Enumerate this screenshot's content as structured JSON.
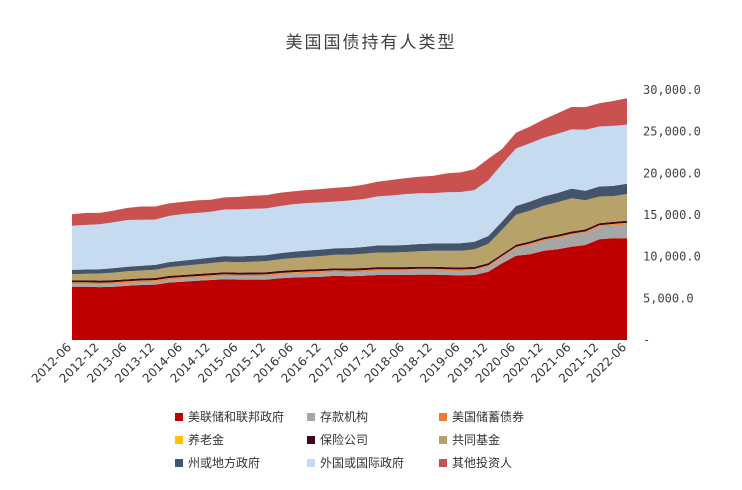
{
  "chart_data": {
    "type": "area",
    "stacked": true,
    "title": "美国国债持有人类型",
    "xlabel": "",
    "ylabel": "",
    "ylim": [
      0,
      30000
    ],
    "yticks": [
      "-",
      "5,000.0",
      "10,000.0",
      "15,000.0",
      "20,000.0",
      "25,000.0",
      "30,000.0"
    ],
    "x": [
      "2012-06",
      "2012-09",
      "2012-12",
      "2013-03",
      "2013-06",
      "2013-09",
      "2013-12",
      "2014-03",
      "2014-06",
      "2014-09",
      "2014-12",
      "2015-03",
      "2015-06",
      "2015-09",
      "2015-12",
      "2016-03",
      "2016-06",
      "2016-09",
      "2016-12",
      "2017-03",
      "2017-06",
      "2017-09",
      "2017-12",
      "2018-03",
      "2018-06",
      "2018-09",
      "2018-12",
      "2019-03",
      "2019-06",
      "2019-09",
      "2019-12",
      "2020-03",
      "2020-06",
      "2020-09",
      "2020-12",
      "2021-03",
      "2021-06",
      "2021-09",
      "2021-12",
      "2022-03",
      "2022-06"
    ],
    "xtick_labels": [
      "2012-06",
      "2012-12",
      "2013-06",
      "2013-12",
      "2014-06",
      "2014-12",
      "2015-06",
      "2015-12",
      "2016-06",
      "2016-12",
      "2017-06",
      "2017-12",
      "2018-06",
      "2018-12",
      "2019-06",
      "2019-12",
      "2020-06",
      "2020-12",
      "2021-06",
      "2021-12",
      "2022-06"
    ],
    "legend_position": "bottom",
    "grid": false,
    "series": [
      {
        "name": "美联储和联邦政府",
        "color": "#c00000",
        "values": [
          6400,
          6400,
          6350,
          6400,
          6500,
          6600,
          6650,
          6900,
          7000,
          7100,
          7200,
          7300,
          7250,
          7250,
          7250,
          7400,
          7500,
          7550,
          7600,
          7700,
          7650,
          7700,
          7800,
          7800,
          7800,
          7850,
          7850,
          7800,
          7750,
          7800,
          8200,
          9200,
          10100,
          10300,
          10700,
          10900,
          11200,
          11400,
          12100,
          12200,
          12200
        ]
      },
      {
        "name": "存款机构",
        "color": "#a6a6a6",
        "values": [
          300,
          300,
          320,
          330,
          330,
          330,
          330,
          340,
          350,
          360,
          370,
          380,
          390,
          400,
          420,
          440,
          450,
          470,
          480,
          480,
          490,
          500,
          510,
          510,
          510,
          510,
          520,
          520,
          530,
          540,
          600,
          700,
          900,
          1100,
          1200,
          1300,
          1400,
          1450,
          1500,
          1550,
          1700
        ]
      },
      {
        "name": "美国储蓄债券",
        "color": "#ed7d31",
        "values": [
          180,
          180,
          180,
          180,
          180,
          180,
          175,
          175,
          175,
          175,
          175,
          175,
          170,
          170,
          170,
          170,
          165,
          165,
          165,
          160,
          160,
          160,
          155,
          155,
          155,
          155,
          150,
          150,
          150,
          150,
          150,
          145,
          145,
          145,
          145,
          140,
          140,
          140,
          140,
          140,
          140
        ]
      },
      {
        "name": "养老金",
        "color": "#ffc000",
        "values": [
          30,
          30,
          30,
          30,
          30,
          30,
          30,
          30,
          30,
          30,
          30,
          30,
          30,
          30,
          30,
          30,
          30,
          30,
          30,
          30,
          30,
          30,
          30,
          30,
          30,
          30,
          30,
          30,
          30,
          30,
          30,
          30,
          30,
          30,
          30,
          30,
          30,
          30,
          30,
          30,
          30
        ]
      },
      {
        "name": "保险公司",
        "color": "#3d0a1a",
        "values": [
          250,
          250,
          250,
          250,
          250,
          250,
          250,
          250,
          250,
          250,
          250,
          250,
          250,
          250,
          250,
          250,
          250,
          250,
          250,
          250,
          250,
          250,
          250,
          250,
          250,
          250,
          250,
          250,
          250,
          250,
          250,
          250,
          250,
          250,
          250,
          250,
          250,
          250,
          250,
          250,
          250
        ]
      },
      {
        "name": "共同基金",
        "color": "#b7a36a",
        "values": [
          750,
          800,
          850,
          900,
          950,
          950,
          1000,
          1050,
          1100,
          1150,
          1200,
          1250,
          1250,
          1300,
          1350,
          1400,
          1450,
          1500,
          1550,
          1600,
          1650,
          1700,
          1750,
          1750,
          1800,
          1850,
          1900,
          1950,
          2000,
          2100,
          2300,
          2900,
          3600,
          3700,
          3800,
          3900,
          4000,
          3500,
          3200,
          3100,
          3200
        ]
      },
      {
        "name": "州或地方政府",
        "color": "#44546a",
        "values": [
          500,
          500,
          520,
          540,
          560,
          580,
          580,
          600,
          620,
          640,
          660,
          680,
          680,
          700,
          720,
          740,
          760,
          780,
          790,
          800,
          810,
          820,
          840,
          850,
          860,
          870,
          880,
          890,
          900,
          920,
          950,
          1000,
          1050,
          1080,
          1100,
          1120,
          1150,
          1150,
          1200,
          1220,
          1230
        ]
      },
      {
        "name": "外国或国际政府",
        "color": "#c6dbef",
        "values": [
          5300,
          5350,
          5400,
          5500,
          5600,
          5500,
          5450,
          5550,
          5600,
          5550,
          5500,
          5600,
          5650,
          5650,
          5600,
          5650,
          5700,
          5700,
          5650,
          5600,
          5700,
          5750,
          5900,
          6000,
          6100,
          6100,
          6050,
          6150,
          6150,
          6200,
          6700,
          6900,
          6900,
          7000,
          7050,
          7100,
          7100,
          7300,
          7200,
          7200,
          7100
        ]
      },
      {
        "name": "其他投资人",
        "color": "#c9514f",
        "values": [
          1390,
          1440,
          1350,
          1400,
          1450,
          1600,
          1550,
          1500,
          1450,
          1500,
          1450,
          1450,
          1500,
          1550,
          1600,
          1600,
          1550,
          1550,
          1600,
          1650,
          1660,
          1720,
          1750,
          1850,
          1900,
          1980,
          2060,
          2250,
          2350,
          2510,
          2570,
          1800,
          1900,
          2000,
          2200,
          2460,
          2690,
          2730,
          2800,
          2990,
          3150
        ]
      }
    ]
  }
}
